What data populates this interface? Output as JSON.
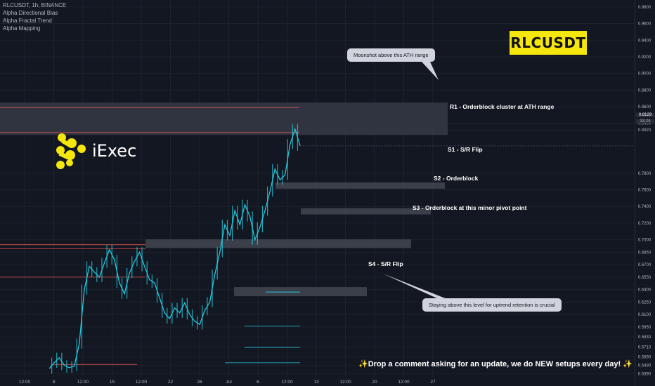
{
  "header": {
    "symbol_line": "RLCUSDT, 1h, BINANCE",
    "indicators": [
      "Alpha Directional Bias",
      "Alpha Fractal Trend",
      "Alpha Mapping"
    ]
  },
  "ticker_badge": "RLCUSDT",
  "logo_text": "iExec",
  "zones": [
    {
      "id": "r1",
      "label": "R1 -  Orderblock cluster at ATH range",
      "y_top": 0.865,
      "y_bottom": 0.826,
      "color": "#363a45"
    },
    {
      "id": "s1",
      "label": "S1 - S/R Flip",
      "y_top": 0.769,
      "y_bottom": 0.766,
      "color": "#434651"
    },
    {
      "id": "s2",
      "label": "S2 - Orderblock",
      "y_top": 0.738,
      "y_bottom": 0.735,
      "color": "#434651"
    },
    {
      "id": "s3",
      "label": "S3 - Orderblock at this minor pivot point",
      "y_top": 0.7005,
      "y_bottom": 0.69,
      "color": "#434651"
    },
    {
      "id": "s4",
      "label": "S4 - S/R Flip",
      "y_top": 0.643,
      "y_bottom": 0.632,
      "color": "#434651"
    }
  ],
  "callouts": {
    "top": "Moonshot above this ATH range",
    "bottom": "Staying above this level for uptrend retention is crucial"
  },
  "footer_text": "✨Drop a comment asking for an update, we do NEW setups every day! ✨",
  "colors": {
    "background": "#131722",
    "candle": "#26c6da",
    "resistance": "#ef5350",
    "badge": "#f5e60e",
    "logo": "#f5e60e"
  },
  "chart_data": {
    "type": "line",
    "title": "RLCUSDT, 1h, BINANCE",
    "xlabel": "",
    "ylabel": "",
    "y_ticks": [
      0.98,
      0.96,
      0.94,
      0.92,
      0.9,
      0.88,
      0.86,
      0.84,
      0.832,
      0.78,
      0.76,
      0.74,
      0.72,
      0.7,
      0.685,
      0.67,
      0.655,
      0.64,
      0.625,
      0.61,
      0.595,
      0.583,
      0.571,
      0.559,
      0.549,
      0.539
    ],
    "x_ticks": [
      "12:00",
      "8",
      "12:00",
      "15",
      "12:00",
      "22",
      "26",
      "Jul",
      "6",
      "12:00",
      "13",
      "12:00",
      "20",
      "12:00",
      "27"
    ],
    "current_price": "0.8129",
    "countdown": "33:24",
    "ylim": [
      0.535,
      0.985
    ],
    "grid": true,
    "series": [
      {
        "values": [
          0.545,
          0.552,
          0.558,
          0.549,
          0.546,
          0.548,
          0.575,
          0.64,
          0.668,
          0.661,
          0.655,
          0.672,
          0.688,
          0.676,
          0.648,
          0.635,
          0.66,
          0.674,
          0.685,
          0.668,
          0.652,
          0.648,
          0.63,
          0.612,
          0.605,
          0.618,
          0.612,
          0.624,
          0.61,
          0.602,
          0.598,
          0.615,
          0.625,
          0.658,
          0.685,
          0.718,
          0.705,
          0.735,
          0.718,
          0.742,
          0.728,
          0.7,
          0.715,
          0.735,
          0.758,
          0.785,
          0.772,
          0.778,
          0.815,
          0.833,
          0.813
        ]
      }
    ]
  }
}
